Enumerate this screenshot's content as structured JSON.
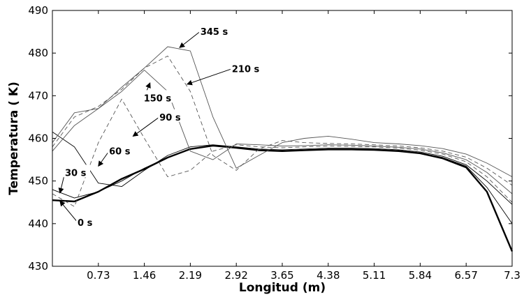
{
  "chart_data": {
    "type": "line",
    "title": "",
    "xlabel": "Longitud (m)",
    "ylabel": "Temperatura ( K)",
    "xlim": [
      0,
      7.3
    ],
    "ylim": [
      430,
      490
    ],
    "xticks": [
      0.73,
      1.46,
      2.19,
      2.92,
      3.65,
      4.38,
      5.11,
      5.84,
      6.57,
      7.3
    ],
    "xtick_labels": [
      "0.73",
      "1.46",
      "2.19",
      "2.92",
      "3.65",
      "4.38",
      "5.11",
      "5.84",
      "6.57",
      "7.3"
    ],
    "yticks": [
      430,
      440,
      450,
      460,
      470,
      480,
      490
    ],
    "ytick_labels": [
      "430",
      "440",
      "450",
      "460",
      "470",
      "480",
      "490"
    ],
    "grid": false,
    "legend": "none",
    "series": [
      {
        "name": "0 s",
        "color": "#000000",
        "style": "solid-bold",
        "x": [
          0,
          0.35,
          0.73,
          1.1,
          1.46,
          1.83,
          2.19,
          2.55,
          2.92,
          3.28,
          3.65,
          4.0,
          4.38,
          4.75,
          5.11,
          5.5,
          5.84,
          6.2,
          6.57,
          6.9,
          7.3
        ],
        "y": [
          445.5,
          445.2,
          447.5,
          450.5,
          452.8,
          455.5,
          457.5,
          458.3,
          457.8,
          457.2,
          457.0,
          457.2,
          457.4,
          457.4,
          457.3,
          457.0,
          456.5,
          455.3,
          453.2,
          447.5,
          433.5
        ]
      },
      {
        "name": "30 s",
        "color": "#000000",
        "style": "solid",
        "x": [
          0,
          0.35,
          0.73,
          1.1,
          1.46,
          1.83,
          2.19,
          2.55,
          2.92,
          3.28,
          3.65,
          4.0,
          4.38,
          4.75,
          5.11,
          5.5,
          5.84,
          6.2,
          6.57,
          6.9,
          7.3
        ],
        "y": [
          448,
          446,
          447.5,
          450,
          453,
          455.5,
          457.5,
          458.2,
          457.8,
          457.3,
          457.1,
          457.3,
          457.5,
          457.5,
          457.4,
          457.1,
          456.6,
          455.5,
          453.5,
          448.5,
          440
        ]
      },
      {
        "name": "60 s",
        "color": "#000000",
        "style": "solid",
        "x": [
          0,
          0.35,
          0.73,
          1.1,
          1.46,
          1.83,
          2.19,
          2.55,
          2.92,
          3.28,
          3.65,
          4.0,
          4.38,
          4.75,
          5.11,
          5.5,
          5.84,
          6.2,
          6.57,
          6.9,
          7.3
        ],
        "y": [
          461.5,
          458,
          449.5,
          448.7,
          452.5,
          456,
          458,
          458.5,
          458,
          457.5,
          457.3,
          457.5,
          457.7,
          457.7,
          457.6,
          457.3,
          456.8,
          455.8,
          453.8,
          450,
          444.5
        ]
      },
      {
        "name": "90 s",
        "color": "#555555",
        "style": "dashed",
        "x": [
          0,
          0.35,
          0.73,
          1.1,
          1.46,
          1.83,
          2.19,
          2.55,
          2.92,
          3.28,
          3.65,
          4.0,
          4.38,
          4.75,
          5.11,
          5.5,
          5.84,
          6.2,
          6.57,
          6.9,
          7.3
        ],
        "y": [
          447,
          444,
          459,
          469.2,
          460,
          451,
          452.5,
          457,
          458.5,
          458,
          457.8,
          458,
          458.2,
          458.1,
          458,
          457.7,
          457.2,
          456.3,
          454.5,
          451,
          445
        ]
      },
      {
        "name": "150 s",
        "color": "#555555",
        "style": "solid",
        "x": [
          0,
          0.35,
          0.73,
          1.1,
          1.46,
          1.83,
          2.19,
          2.55,
          2.92,
          3.28,
          3.65,
          4.0,
          4.38,
          4.75,
          5.11,
          5.5,
          5.84,
          6.2,
          6.57,
          6.9,
          7.3
        ],
        "y": [
          457,
          463,
          467,
          471,
          476,
          471,
          457,
          455,
          458.7,
          458.5,
          458.2,
          458.3,
          458.5,
          458.4,
          458.2,
          457.9,
          457.5,
          456.6,
          455,
          452,
          447
        ]
      },
      {
        "name": "210 s",
        "color": "#555555",
        "style": "dashed",
        "x": [
          0,
          0.35,
          0.73,
          1.1,
          1.46,
          1.83,
          2.19,
          2.55,
          2.92,
          3.28,
          3.65,
          4.0,
          4.38,
          4.75,
          5.11,
          5.5,
          5.84,
          6.2,
          6.57,
          6.9,
          7.3
        ],
        "y": [
          458,
          465,
          467.5,
          471.5,
          476.5,
          479.3,
          471,
          456,
          452.5,
          457.5,
          459.5,
          459,
          458.8,
          458.7,
          458.5,
          458.2,
          457.8,
          457,
          455.6,
          453,
          449
        ]
      },
      {
        "name": "345 s",
        "color": "#555555",
        "style": "solid",
        "x": [
          0,
          0.35,
          0.73,
          1.1,
          1.46,
          1.83,
          2.19,
          2.55,
          2.92,
          3.28,
          3.65,
          4.0,
          4.38,
          4.75,
          5.11,
          5.5,
          5.84,
          6.2,
          6.57,
          6.9,
          7.3
        ],
        "y": [
          459,
          466,
          467,
          472,
          476.5,
          481.5,
          480.5,
          465,
          453,
          456,
          459,
          460,
          460.5,
          459.8,
          459,
          458.7,
          458.3,
          457.6,
          456.3,
          454.2,
          451
        ]
      }
    ],
    "annotations": [
      {
        "text": "0 s",
        "x": 0.4,
        "y": 439.5,
        "arrow_to": [
          0.12,
          445.3
        ]
      },
      {
        "text": "30 s",
        "x": 0.2,
        "y": 451.2,
        "arrow_to": [
          0.12,
          447.2
        ]
      },
      {
        "text": "60 s",
        "x": 0.9,
        "y": 456.2,
        "arrow_to": [
          0.73,
          453.5
        ]
      },
      {
        "text": "90 s",
        "x": 1.7,
        "y": 464.2,
        "arrow_to": [
          1.28,
          460.5
        ]
      },
      {
        "text": "150 s",
        "x": 1.45,
        "y": 468.7,
        "arrow_to": [
          1.55,
          473.0
        ]
      },
      {
        "text": "210 s",
        "x": 2.85,
        "y": 475.5,
        "arrow_to": [
          2.14,
          472.7
        ]
      },
      {
        "text": "345 s",
        "x": 2.35,
        "y": 484.3,
        "arrow_to": [
          2.02,
          481.3
        ]
      }
    ]
  }
}
